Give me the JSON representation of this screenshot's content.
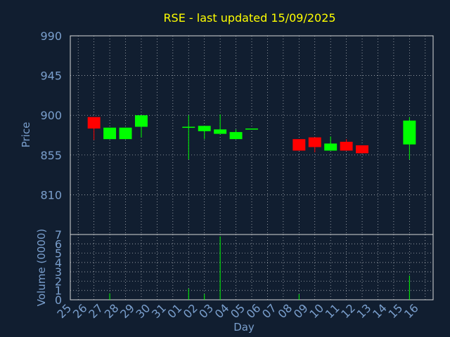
{
  "chart_data": {
    "type": "candlestick",
    "title": "RSE - last updated 15/09/2025",
    "xlabel": "Day",
    "price_panel": {
      "ylabel": "Price",
      "ylim": [
        765,
        990
      ],
      "yticks": [
        990,
        945,
        900,
        855,
        810
      ],
      "grid": true
    },
    "volume_panel": {
      "ylabel": "Volume (0000)",
      "ylim": [
        0,
        7
      ],
      "yticks": [
        0,
        1,
        2,
        3,
        4,
        5,
        6,
        7
      ],
      "grid": true
    },
    "categories": [
      "25",
      "26",
      "27",
      "28",
      "29",
      "30",
      "31",
      "01",
      "02",
      "03",
      "04",
      "05",
      "06",
      "07",
      "08",
      "09",
      "10",
      "11",
      "12",
      "13",
      "14",
      "15",
      "16"
    ],
    "candles": [
      {
        "x": "26",
        "open": 898,
        "close": 885,
        "high": 898,
        "low": 872
      },
      {
        "x": "27",
        "open": 873,
        "close": 886,
        "high": 886,
        "low": 873
      },
      {
        "x": "28",
        "open": 873,
        "close": 886,
        "high": 886,
        "low": 873
      },
      {
        "x": "29",
        "open": 887,
        "close": 900,
        "high": 900,
        "low": 875
      },
      {
        "x": "01",
        "open": 886,
        "close": 887,
        "high": 900,
        "low": 850
      },
      {
        "x": "02",
        "open": 882,
        "close": 888,
        "high": 888,
        "low": 873
      },
      {
        "x": "03",
        "open": 879,
        "close": 884,
        "high": 901,
        "low": 879
      },
      {
        "x": "04",
        "open": 873,
        "close": 881,
        "high": 884,
        "low": 873
      },
      {
        "x": "05",
        "open": 884,
        "close": 885,
        "high": 885,
        "low": 884
      },
      {
        "x": "08",
        "open": 873,
        "close": 860,
        "high": 873,
        "low": 860
      },
      {
        "x": "09",
        "open": 875,
        "close": 864,
        "high": 875,
        "low": 858
      },
      {
        "x": "10",
        "open": 860,
        "close": 868,
        "high": 876,
        "low": 860
      },
      {
        "x": "11",
        "open": 870,
        "close": 860,
        "high": 873,
        "low": 860
      },
      {
        "x": "12",
        "open": 866,
        "close": 857,
        "high": 866,
        "low": 857
      },
      {
        "x": "15",
        "open": 867,
        "close": 894,
        "high": 898,
        "low": 850
      }
    ],
    "volumes": [
      {
        "x": "27",
        "value": 0.7
      },
      {
        "x": "01",
        "value": 1.2
      },
      {
        "x": "02",
        "value": 0.6
      },
      {
        "x": "03",
        "value": 6.8
      },
      {
        "x": "08",
        "value": 0.6
      },
      {
        "x": "15",
        "value": 2.6
      }
    ],
    "colors": {
      "up": "#00ff00",
      "down": "#ff0000",
      "grid": "#ffffff",
      "text": "#7a9fcd",
      "title": "#ffff00",
      "background": "#111e30"
    }
  }
}
